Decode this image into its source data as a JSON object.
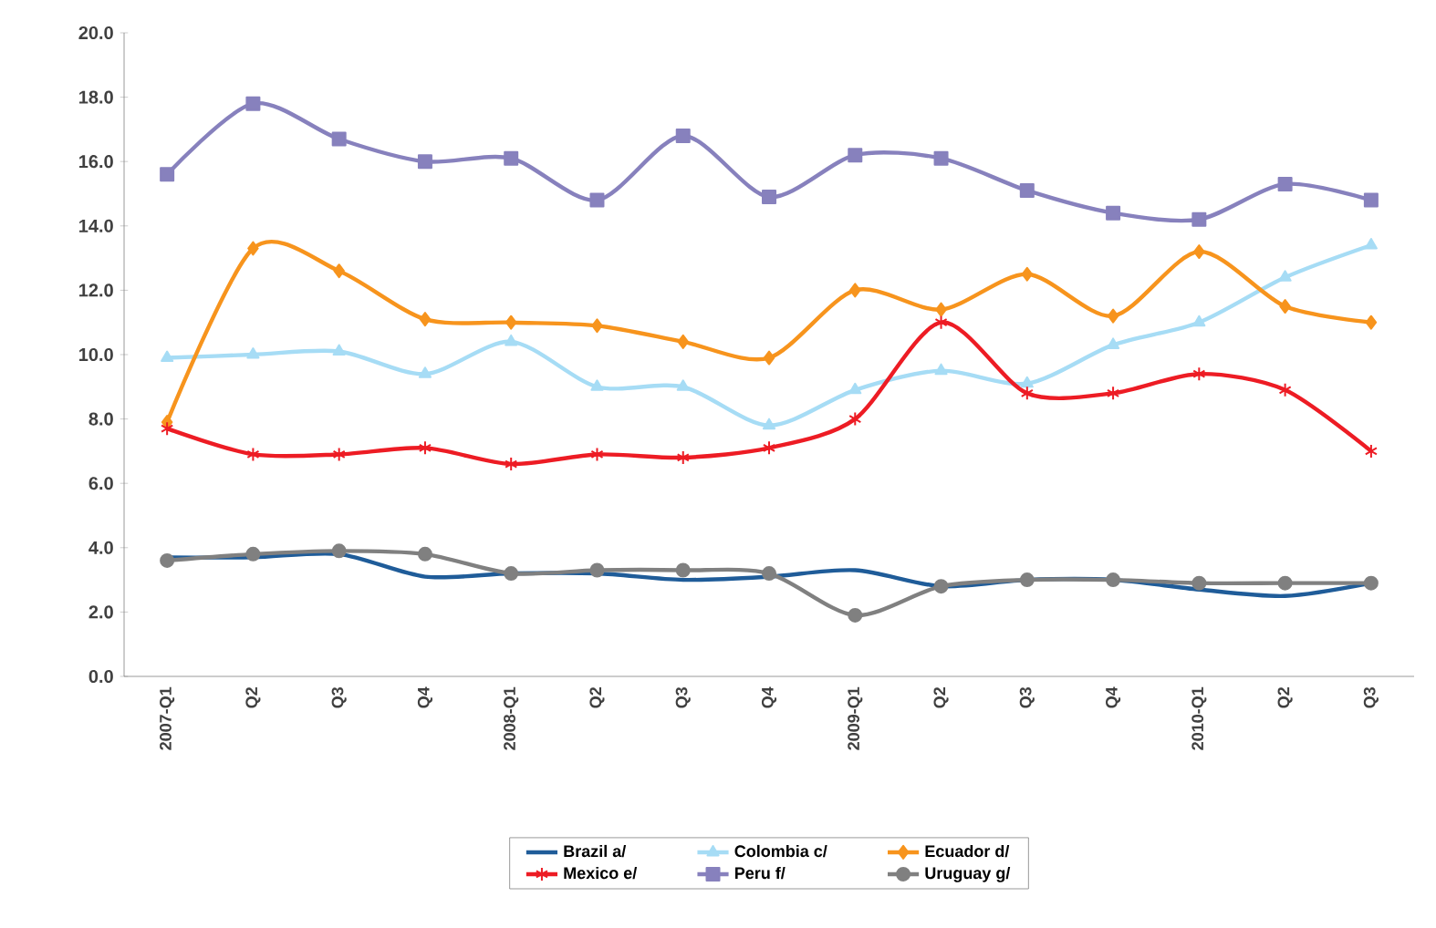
{
  "chart_data": {
    "type": "line",
    "categories": [
      "2007-Q1",
      "Q2",
      "Q3",
      "Q4",
      "2008-Q1",
      "Q2",
      "Q3",
      "Q4",
      "2009-Q1",
      "Q2",
      "Q3",
      "Q4",
      "2010-Q1",
      "Q2",
      "Q3"
    ],
    "ylim": [
      0,
      20
    ],
    "yticks": [
      {
        "value": 0,
        "label": "0.0"
      },
      {
        "value": 2,
        "label": "2.0"
      },
      {
        "value": 4,
        "label": "4.0"
      },
      {
        "value": 6,
        "label": "6.0"
      },
      {
        "value": 8,
        "label": "8.0"
      },
      {
        "value": 10,
        "label": "10.0"
      },
      {
        "value": 12,
        "label": "12.0"
      },
      {
        "value": 14,
        "label": "14.0"
      },
      {
        "value": 16,
        "label": "16.0"
      },
      {
        "value": 18,
        "label": "18.0"
      },
      {
        "value": 20,
        "label": "20.0"
      }
    ],
    "legend": "bottom",
    "series": [
      {
        "name": "Brazil a/",
        "color": "#1f5c99",
        "marker": "none",
        "values": [
          3.7,
          3.7,
          3.8,
          3.1,
          3.2,
          3.2,
          3.0,
          3.1,
          3.3,
          2.8,
          3.0,
          3.0,
          2.7,
          2.5,
          2.9
        ]
      },
      {
        "name": "Colombia c/",
        "color": "#a6dcf5",
        "marker": "triangle",
        "values": [
          9.9,
          10.0,
          10.1,
          9.4,
          10.4,
          9.0,
          9.0,
          7.8,
          8.9,
          9.5,
          9.1,
          10.3,
          11.0,
          12.4,
          13.4
        ]
      },
      {
        "name": "Ecuador d/",
        "color": "#f7941d",
        "marker": "diamond",
        "values": [
          7.9,
          13.3,
          12.6,
          11.1,
          11.0,
          10.9,
          10.4,
          9.9,
          12.0,
          11.4,
          12.5,
          11.2,
          13.2,
          11.5,
          11.0
        ]
      },
      {
        "name": "Mexico e/",
        "color": "#ed1c24",
        "marker": "cross",
        "values": [
          7.7,
          6.9,
          6.9,
          7.1,
          6.6,
          6.9,
          6.8,
          7.1,
          8.0,
          11.0,
          8.8,
          8.8,
          9.4,
          8.9,
          7.0
        ]
      },
      {
        "name": "Peru f/",
        "color": "#8781bd",
        "marker": "square",
        "values": [
          15.6,
          17.8,
          16.7,
          16.0,
          16.1,
          14.8,
          16.8,
          14.9,
          16.2,
          16.1,
          15.1,
          14.4,
          14.2,
          15.3,
          14.8
        ]
      },
      {
        "name": "Uruguay g/",
        "color": "#808080",
        "marker": "circle",
        "values": [
          3.6,
          3.8,
          3.9,
          3.8,
          3.2,
          3.3,
          3.3,
          3.2,
          1.9,
          2.8,
          3.0,
          3.0,
          2.9,
          2.9,
          2.9
        ]
      }
    ]
  }
}
